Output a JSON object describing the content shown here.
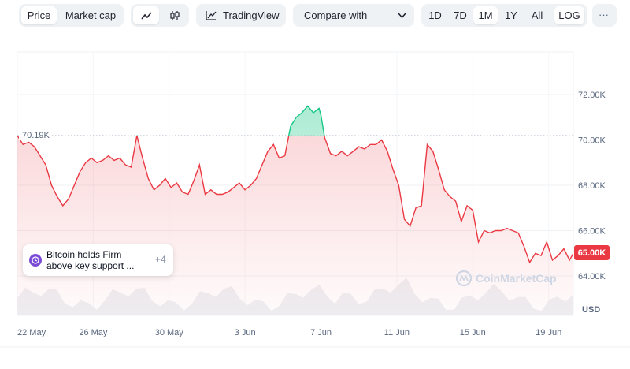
{
  "toolbar": {
    "price_tab": "Price",
    "marketcap_tab": "Market cap",
    "tradingview_label": "TradingView",
    "compare_label": "Compare with",
    "ranges": [
      "1D",
      "7D",
      "1M",
      "1Y",
      "All"
    ],
    "active_range": "1M",
    "log_label": "LOG",
    "more_label": "···"
  },
  "chart_data": {
    "type": "area",
    "reference_price": 70190,
    "reference_label": "70.19K",
    "current_price_label": "65.00K",
    "currency": "USD",
    "y_ticks": [
      {
        "value": 72000,
        "label": "72.00K"
      },
      {
        "value": 70000,
        "label": "70.00K"
      },
      {
        "value": 68000,
        "label": "68.00K"
      },
      {
        "value": 66000,
        "label": "66.00K"
      },
      {
        "value": 64000,
        "label": "64.00K"
      }
    ],
    "x_ticks": [
      "22 May",
      "26 May",
      "30 May",
      "3 Jun",
      "7 Jun",
      "11 Jun",
      "15 Jun",
      "19 Jun"
    ],
    "x_tick_days": [
      0,
      4,
      8,
      12,
      16,
      20,
      24,
      28
    ],
    "ylim": [
      63500,
      73200
    ],
    "xlim_days": [
      0,
      29.3
    ],
    "colors": {
      "up": "#16c784",
      "down": "#ea3943"
    },
    "series": [
      {
        "x": [
          0,
          0.3,
          0.6,
          0.9,
          1.2,
          1.5,
          1.8,
          2.1,
          2.4,
          2.7,
          3.0,
          3.3,
          3.6,
          3.9,
          4.2,
          4.5,
          4.8,
          5.1,
          5.4,
          5.7,
          6.0,
          6.3,
          6.6,
          6.9,
          7.2,
          7.5,
          7.8,
          8.1,
          8.4,
          8.7,
          9.0,
          9.3,
          9.6,
          9.9,
          10.2,
          10.5,
          10.8,
          11.1,
          11.4,
          11.7,
          12.0,
          12.3,
          12.6,
          12.9,
          13.2,
          13.5,
          13.8,
          14.1,
          14.4,
          14.7,
          15.0,
          15.3,
          15.6,
          15.9,
          16.0,
          16.2,
          16.5,
          16.8,
          17.1,
          17.4,
          17.7,
          18.0,
          18.3,
          18.6,
          18.9,
          19.2,
          19.5,
          19.8,
          20.1,
          20.4,
          20.7,
          21.0,
          21.3,
          21.6,
          21.9,
          22.2,
          22.5,
          22.8,
          23.1,
          23.4,
          23.7,
          24.0,
          24.3,
          24.6,
          24.9,
          25.2,
          25.5,
          25.8,
          26.1,
          26.4,
          26.7,
          27.0,
          27.3,
          27.6,
          27.9,
          28.2,
          28.5,
          28.8,
          29.1,
          29.3
        ],
        "y": [
          70190,
          69800,
          69900,
          69700,
          69300,
          68900,
          68000,
          67500,
          67100,
          67400,
          68000,
          68600,
          69000,
          69200,
          69000,
          69100,
          69300,
          69100,
          69200,
          68900,
          68800,
          70200,
          69200,
          68300,
          67800,
          68000,
          68300,
          67900,
          68100,
          67700,
          67600,
          68200,
          68900,
          67600,
          67800,
          67600,
          67600,
          67700,
          67900,
          68100,
          67800,
          68000,
          68300,
          68900,
          69500,
          69800,
          69200,
          69300,
          70600,
          71000,
          71200,
          71500,
          71200,
          71400,
          71100,
          70100,
          69400,
          69300,
          69500,
          69300,
          69500,
          69700,
          69600,
          69800,
          69800,
          70000,
          69500,
          68700,
          68000,
          66500,
          66200,
          67000,
          67100,
          69800,
          69500,
          68700,
          67800,
          67500,
          67300,
          66400,
          67100,
          66900,
          65500,
          66000,
          65900,
          66000,
          66000,
          66100,
          66000,
          65900,
          65300,
          64600,
          65000,
          64900,
          65500,
          64700,
          64900,
          65200,
          64700,
          65000
        ]
      }
    ],
    "watermark": "CoinMarketCap"
  },
  "news": {
    "text_line1": "Bitcoin holds Firm",
    "text_line2": "above key support ...",
    "count": "+4"
  }
}
